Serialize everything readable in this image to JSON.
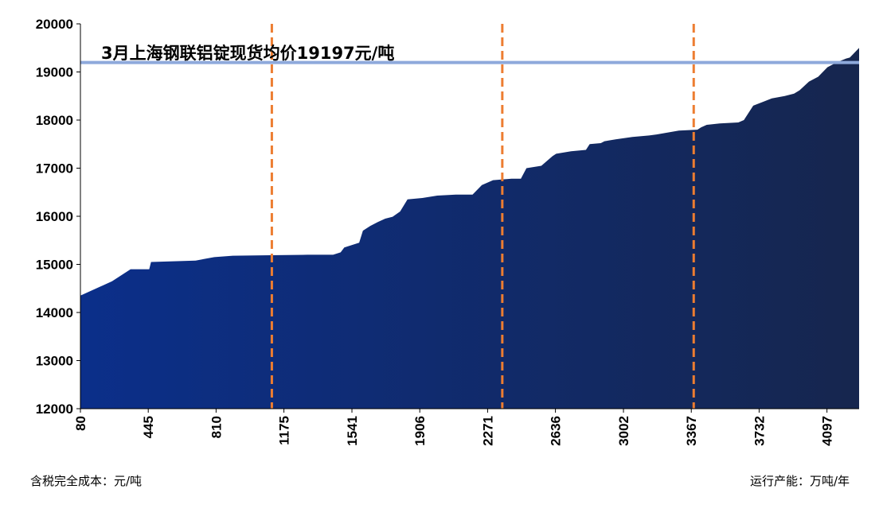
{
  "chart_data": {
    "type": "area",
    "title": "",
    "xlabel": "运行产能：万吨/年",
    "ylabel": "含税完全成本：元/吨",
    "ylim": [
      12000,
      20000
    ],
    "xlim": [
      80,
      4270
    ],
    "grid": false,
    "yticks": [
      "12000",
      "13000",
      "14000",
      "15000",
      "16000",
      "17000",
      "18000",
      "19000",
      "20000"
    ],
    "xticks": [
      "80",
      "445",
      "810",
      "1175",
      "1541",
      "1906",
      "2271",
      "2636",
      "3002",
      "3367",
      "3732",
      "4097"
    ],
    "series": [
      {
        "x": [
          80,
          250,
          350,
          450,
          460,
          700,
          800,
          900,
          1100,
          1300,
          1440,
          1480,
          1500,
          1580,
          1600,
          1640,
          1680,
          1720,
          1760,
          1800,
          1840,
          1920,
          2000,
          2100,
          2190,
          2240,
          2300,
          2400,
          2450,
          2480,
          2560,
          2620,
          2640,
          2720,
          2800,
          2820,
          2880,
          2900,
          2960,
          3050,
          3140,
          3180,
          3300,
          3400,
          3420,
          3450,
          3500,
          3520,
          3620,
          3650,
          3700,
          3800,
          3870,
          3920,
          3950,
          4000,
          4050,
          4100,
          4150,
          4200,
          4220,
          4270
        ],
        "values": [
          14350,
          14650,
          14900,
          14900,
          15050,
          15080,
          15150,
          15180,
          15190,
          15200,
          15200,
          15250,
          15350,
          15450,
          15700,
          15800,
          15880,
          15950,
          15990,
          16100,
          16350,
          16380,
          16430,
          16450,
          16450,
          16650,
          16750,
          16780,
          16780,
          17000,
          17050,
          17250,
          17300,
          17350,
          17380,
          17500,
          17520,
          17560,
          17600,
          17650,
          17680,
          17700,
          17780,
          17800,
          17850,
          17900,
          17920,
          17930,
          17950,
          18000,
          18300,
          18450,
          18500,
          18550,
          18620,
          18800,
          18900,
          19100,
          19200,
          19280,
          19300,
          19500
        ]
      }
    ],
    "average_line": {
      "value": 19197,
      "label": "3月上海钢联铝锭现货均价19197元/吨"
    },
    "dashed_lines_x": [
      1110,
      2350,
      3380
    ],
    "colors": {
      "area_left": "#0b2f8a",
      "area_right": "#16264e",
      "average": "#8ea9db",
      "dashed": "#ed7d31",
      "axis": "#000000"
    }
  }
}
